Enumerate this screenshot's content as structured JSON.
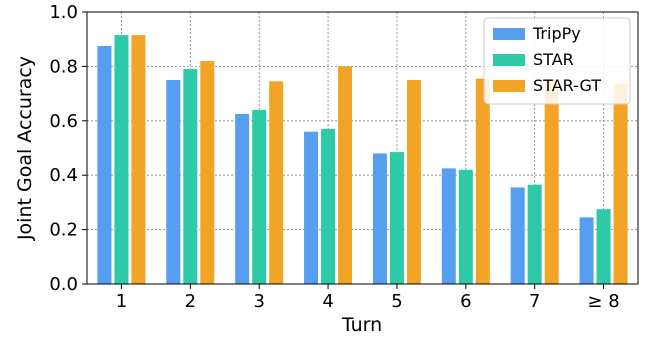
{
  "chart_data": {
    "type": "bar",
    "categories": [
      "1",
      "2",
      "3",
      "4",
      "5",
      "6",
      "7",
      "≥ 8"
    ],
    "series": [
      {
        "name": "TripPy",
        "color": "#559ef0",
        "values": [
          0.875,
          0.75,
          0.625,
          0.56,
          0.48,
          0.425,
          0.355,
          0.245
        ]
      },
      {
        "name": "STAR",
        "color": "#2ec9a6",
        "values": [
          0.915,
          0.79,
          0.64,
          0.57,
          0.485,
          0.42,
          0.365,
          0.275
        ]
      },
      {
        "name": "STAR-GT",
        "color": "#f2a426",
        "values": [
          0.915,
          0.82,
          0.745,
          0.8,
          0.75,
          0.755,
          0.75,
          0.735
        ]
      }
    ],
    "title": "",
    "xlabel": "Turn",
    "ylabel": "Joint Goal Accuracy",
    "ylim": [
      0.0,
      1.0
    ],
    "yticks": [
      "0.0",
      "0.2",
      "0.4",
      "0.6",
      "0.8",
      "1.0"
    ],
    "grid": true,
    "legend_position": "top-right"
  }
}
